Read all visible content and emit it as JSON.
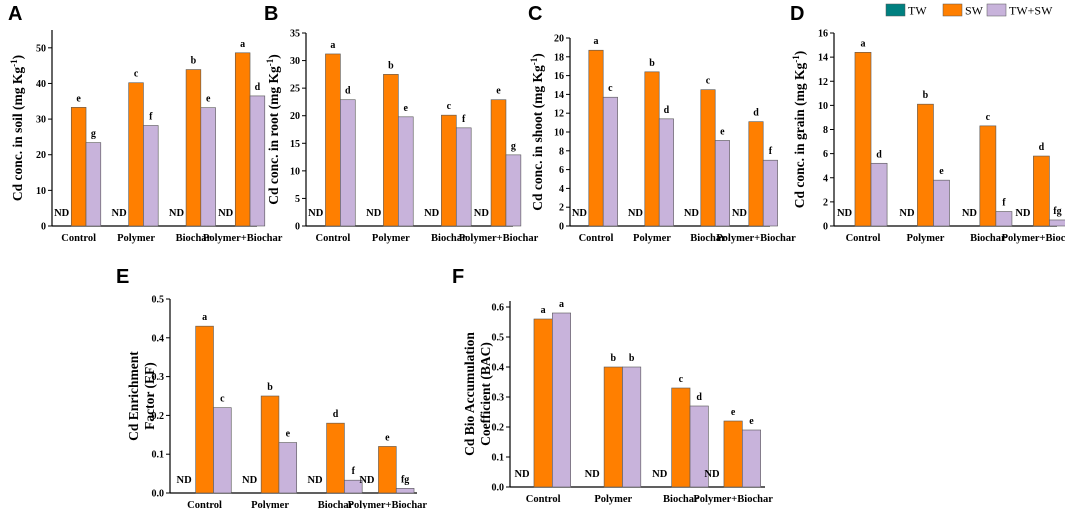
{
  "colors": {
    "TW": "#008080",
    "SW": "#FF7F00",
    "TW+SW": "#C8B3DB",
    "axis": "#000000"
  },
  "legend": {
    "items": [
      "TW",
      "SW",
      "TW+SW"
    ]
  },
  "nd_label": "ND",
  "chart_data": [
    {
      "panel": "A",
      "type": "bar",
      "title": "",
      "xlabel": "",
      "ylabel": "Cd conc. in soil (mg Kg-1)",
      "ylabel_main": "Cd conc. in soil (mg Kg",
      "ylabel_sup": "-1",
      "ylabel_end": ")",
      "categories": [
        "Control",
        "Polymer",
        "Biochar",
        "Polymer+Biochar"
      ],
      "ylim": [
        0,
        55
      ],
      "yticks": [
        0,
        10,
        20,
        30,
        40,
        50
      ],
      "series": [
        {
          "name": "TW",
          "values": [
            null,
            null,
            null,
            null
          ],
          "labels": [
            "ND",
            "ND",
            "ND",
            "ND"
          ]
        },
        {
          "name": "SW",
          "values": [
            33.3,
            40.2,
            43.9,
            48.6
          ],
          "labels": [
            "e",
            "c",
            "b",
            "a"
          ]
        },
        {
          "name": "TW+SW",
          "values": [
            23.4,
            28.2,
            33.2,
            36.5
          ],
          "labels": [
            "g",
            "f",
            "e",
            "d"
          ]
        }
      ]
    },
    {
      "panel": "B",
      "type": "bar",
      "title": "",
      "xlabel": "",
      "ylabel": "Cd conc. in root (mg Kg-1)",
      "ylabel_main": "Cd conc. in root (mg Kg",
      "ylabel_sup": "-1",
      "ylabel_end": ")",
      "categories": [
        "Control",
        "Polymer",
        "Biochar",
        "Polymer+Biochar"
      ],
      "ylim": [
        0,
        35
      ],
      "yticks": [
        0,
        5,
        10,
        15,
        20,
        25,
        30,
        35
      ],
      "series": [
        {
          "name": "TW",
          "values": [
            null,
            null,
            null,
            null
          ],
          "labels": [
            "ND",
            "ND",
            "ND",
            "ND"
          ]
        },
        {
          "name": "SW",
          "values": [
            31.2,
            27.5,
            20.1,
            22.9
          ],
          "labels": [
            "a",
            "b",
            "c",
            "e"
          ]
        },
        {
          "name": "TW+SW",
          "values": [
            22.9,
            19.8,
            17.8,
            12.9
          ],
          "labels": [
            "d",
            "e",
            "f",
            "g"
          ]
        }
      ]
    },
    {
      "panel": "C",
      "type": "bar",
      "title": "",
      "xlabel": "",
      "ylabel": "Cd conc. in shoot (mg Kg-1)",
      "ylabel_main": "Cd conc. in shoot (mg Kg",
      "ylabel_sup": "-1",
      "ylabel_end": ")",
      "categories": [
        "Control",
        "Polymer",
        "Biochar",
        "Polymer+Biochar"
      ],
      "ylim": [
        0,
        20
      ],
      "yticks": [
        0,
        2,
        4,
        6,
        8,
        10,
        12,
        14,
        16,
        18,
        20
      ],
      "series": [
        {
          "name": "TW",
          "values": [
            null,
            null,
            null,
            null
          ],
          "labels": [
            "ND",
            "ND",
            "ND",
            "ND"
          ]
        },
        {
          "name": "SW",
          "values": [
            18.7,
            16.4,
            14.5,
            11.1
          ],
          "labels": [
            "a",
            "b",
            "c",
            "d"
          ]
        },
        {
          "name": "TW+SW",
          "values": [
            13.7,
            11.4,
            9.1,
            7.0
          ],
          "labels": [
            "c",
            "d",
            "e",
            "f"
          ]
        }
      ]
    },
    {
      "panel": "D",
      "type": "bar",
      "title": "",
      "xlabel": "",
      "ylabel": "Cd conc. in grain (mg Kg-1)",
      "ylabel_main": "Cd conc. in grain (mg Kg",
      "ylabel_sup": "-1",
      "ylabel_end": ")",
      "categories": [
        "Control",
        "Polymer",
        "Biochar",
        "Polymer+Biochar"
      ],
      "ylim": [
        0,
        16
      ],
      "yticks": [
        0,
        2,
        4,
        6,
        8,
        10,
        12,
        14,
        16
      ],
      "series": [
        {
          "name": "TW",
          "values": [
            null,
            null,
            null,
            null
          ],
          "labels": [
            "ND",
            "ND",
            "ND",
            "ND"
          ]
        },
        {
          "name": "SW",
          "values": [
            14.4,
            10.1,
            8.3,
            5.8
          ],
          "labels": [
            "a",
            "b",
            "c",
            "d"
          ]
        },
        {
          "name": "TW+SW",
          "values": [
            5.2,
            3.8,
            1.2,
            0.5
          ],
          "labels": [
            "d",
            "e",
            "f",
            "fg"
          ]
        }
      ]
    },
    {
      "panel": "E",
      "type": "bar",
      "title": "",
      "xlabel": "",
      "ylabel": "Cd Enrichment Factor (EF)",
      "ylabel_line1": "Cd Enrichment",
      "ylabel_line2": "Factor (EF)",
      "categories": [
        "Control",
        "Polymer",
        "Biochar",
        "Polymer+Biochar"
      ],
      "ylim": [
        0,
        0.5
      ],
      "yticks": [
        "0.0",
        "0.1",
        "0.2",
        "0.3",
        "0.4",
        "0.5"
      ],
      "series": [
        {
          "name": "TW",
          "values": [
            null,
            null,
            null,
            null
          ],
          "labels": [
            "ND",
            "ND",
            "ND",
            "ND"
          ]
        },
        {
          "name": "SW",
          "values": [
            0.43,
            0.25,
            0.18,
            0.12
          ],
          "labels": [
            "a",
            "b",
            "d",
            "e"
          ]
        },
        {
          "name": "TW+SW",
          "values": [
            0.22,
            0.13,
            0.033,
            0.012
          ],
          "labels": [
            "c",
            "e",
            "f",
            "fg"
          ]
        }
      ]
    },
    {
      "panel": "F",
      "type": "bar",
      "title": "",
      "xlabel": "",
      "ylabel": "Cd Bio Accumulation Coefficient (BAC)",
      "ylabel_line1": "Cd Bio Accumulation",
      "ylabel_line2": "Coefficient (BAC)",
      "categories": [
        "Control",
        "Polymer",
        "Biochar",
        "Polymer+Biochar"
      ],
      "ylim": [
        0,
        0.62
      ],
      "yticks": [
        "0.0",
        "0.1",
        "0.2",
        "0.3",
        "0.4",
        "0.5",
        "0.6"
      ],
      "series": [
        {
          "name": "TW",
          "values": [
            null,
            null,
            null,
            null
          ],
          "labels": [
            "ND",
            "ND",
            "ND",
            "ND"
          ]
        },
        {
          "name": "SW",
          "values": [
            0.56,
            0.4,
            0.33,
            0.22
          ],
          "labels": [
            "a",
            "b",
            "c",
            "e"
          ]
        },
        {
          "name": "TW+SW",
          "values": [
            0.58,
            0.4,
            0.27,
            0.19
          ],
          "labels": [
            "a",
            "b",
            "d",
            "e"
          ]
        }
      ]
    }
  ]
}
